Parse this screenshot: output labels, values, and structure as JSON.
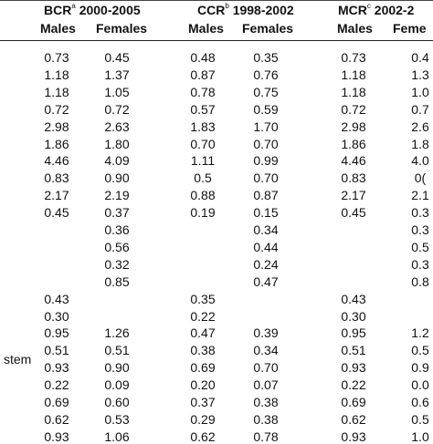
{
  "headers": {
    "bcr": {
      "name": "BCR",
      "sup": "a",
      "years": "2000-2005"
    },
    "ccr": {
      "name": "CCR",
      "sup": "b",
      "years": "1998-2002"
    },
    "mcr": {
      "name": "MCR",
      "sup": "c",
      "years": "2002-2"
    }
  },
  "sub_headers": [
    "Males",
    "Females",
    "Males",
    "Females",
    "Males",
    "Feme"
  ],
  "row_label_fragment": "stem",
  "rows": [
    [
      "0.73",
      "0.45",
      "0.48",
      "0.35",
      "0.73",
      "0.4"
    ],
    [
      "1.18",
      "1.37",
      "0.87",
      "0.76",
      "1.18",
      "1.3"
    ],
    [
      "1.18",
      "1.05",
      "0.78",
      "0.75",
      "1.18",
      "1.0"
    ],
    [
      "0.72",
      "0.72",
      "0.57",
      "0.59",
      "0.72",
      "0.7"
    ],
    [
      "2.98",
      "2.63",
      "1.83",
      "1.70",
      "2.98",
      "2.6"
    ],
    [
      "1.86",
      "1.80",
      "0.70",
      "0.70",
      "1.86",
      "1.8"
    ],
    [
      "4.46",
      "4.09",
      "1.11",
      "0.99",
      "4.46",
      "4.0"
    ],
    [
      "0.83",
      "0.90",
      "0.5",
      "0.70",
      "0.83",
      "0("
    ],
    [
      "2.17",
      "2.19",
      "0.88",
      "0.87",
      "2.17",
      "2.1"
    ],
    [
      "0.45",
      "0.37",
      "0.19",
      "0.15",
      "0.45",
      "0.3"
    ],
    [
      "",
      "0.36",
      "",
      "0.34",
      "",
      "0.3"
    ],
    [
      "",
      "0.56",
      "",
      "0.44",
      "",
      "0.5"
    ],
    [
      "",
      "0.32",
      "",
      "0.24",
      "",
      "0.3"
    ],
    [
      "",
      "0.85",
      "",
      "0.47",
      "",
      "0.8"
    ],
    [
      "0.43",
      "",
      "0.35",
      "",
      "0.43",
      ""
    ],
    [
      "0.30",
      "",
      "0.22",
      "",
      "0.30",
      ""
    ],
    [
      "0.95",
      "1.26",
      "0.47",
      "0.39",
      "0.95",
      "1.2"
    ],
    [
      "0.51",
      "0.51",
      "0.38",
      "0.34",
      "0.51",
      "0.5"
    ],
    [
      "0.93",
      "0.90",
      "0.69",
      "0.70",
      "0.93",
      "0.9"
    ],
    [
      "0.22",
      "0.09",
      "0.20",
      "0.07",
      "0.22",
      "0.0"
    ],
    [
      "0.69",
      "0.60",
      "0.37",
      "0.38",
      "0.69",
      "0.6"
    ],
    [
      "0.62",
      "0.53",
      "0.29",
      "0.38",
      "0.62",
      "0.5"
    ],
    [
      "0.93",
      "1.06",
      "0.62",
      "0.78",
      "0.93",
      "1.0"
    ]
  ]
}
